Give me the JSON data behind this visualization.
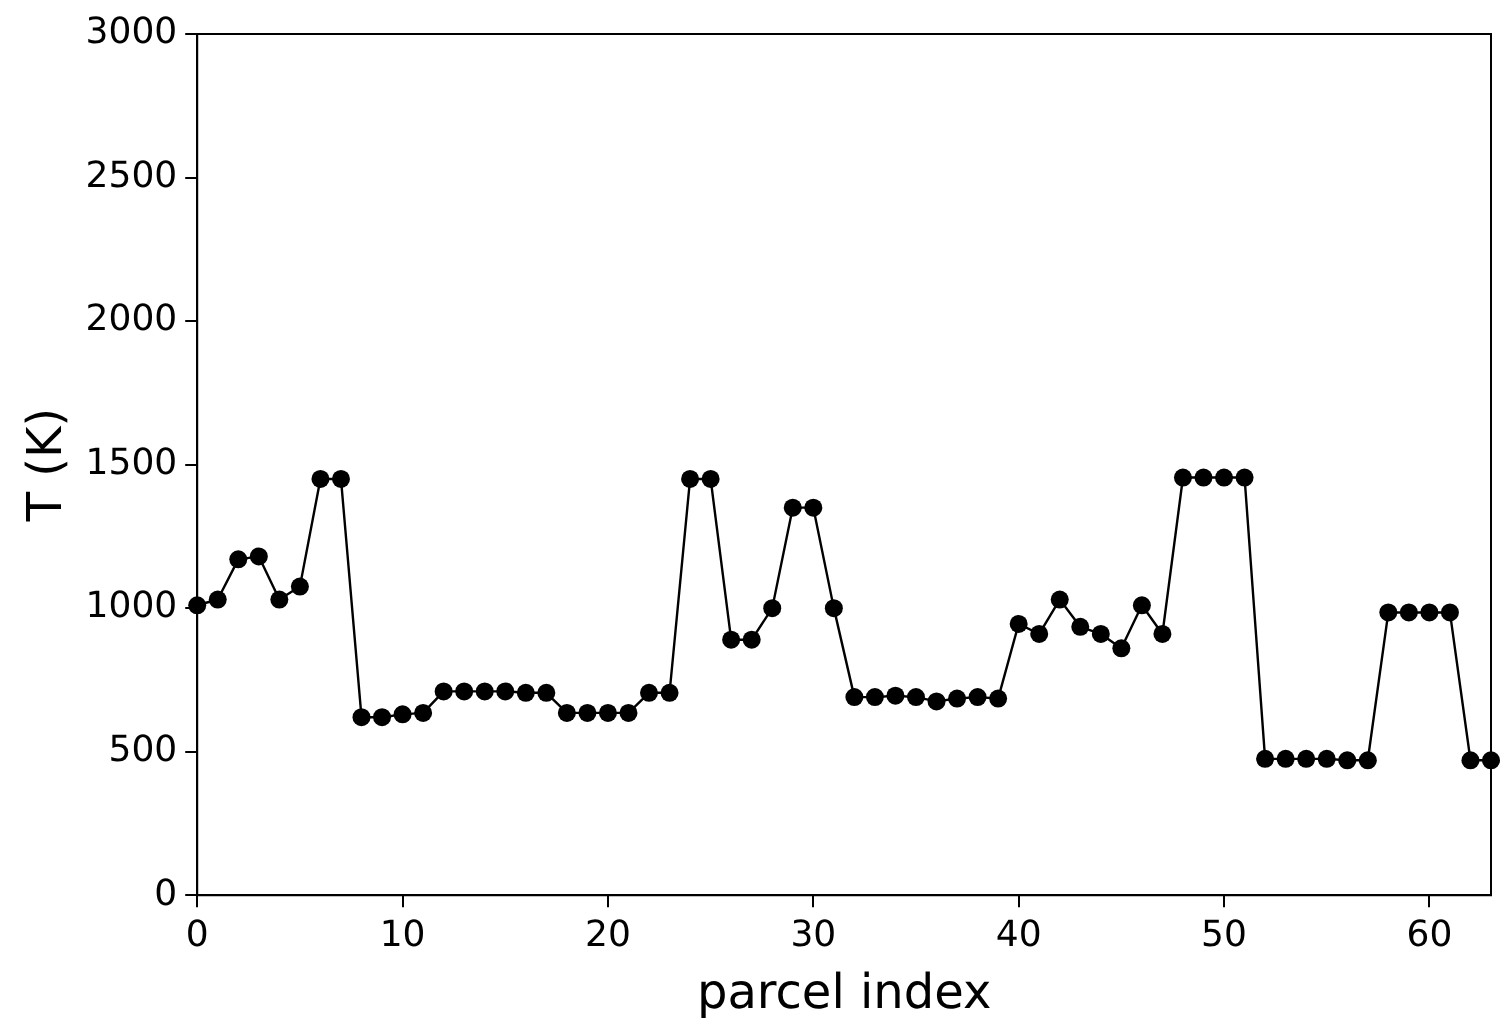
{
  "chart_data": {
    "type": "line",
    "xlabel": "parcel index",
    "ylabel": "T (K)",
    "x": [
      0,
      1,
      2,
      3,
      4,
      5,
      6,
      7,
      8,
      9,
      10,
      11,
      12,
      13,
      14,
      15,
      16,
      17,
      18,
      19,
      20,
      21,
      22,
      23,
      24,
      25,
      26,
      27,
      28,
      29,
      30,
      31,
      32,
      33,
      34,
      35,
      36,
      37,
      38,
      39,
      40,
      41,
      42,
      43,
      44,
      45,
      46,
      47,
      48,
      49,
      50,
      51,
      52,
      53,
      54,
      55,
      56,
      57,
      58,
      59,
      60,
      61,
      62,
      63
    ],
    "series": [
      {
        "color": "#000000",
        "values": [
          1010,
          1030,
          1170,
          1180,
          1030,
          1075,
          1450,
          1450,
          620,
          620,
          630,
          635,
          710,
          710,
          710,
          710,
          705,
          705,
          635,
          635,
          635,
          635,
          705,
          705,
          1450,
          1450,
          890,
          890,
          1000,
          1350,
          1350,
          1000,
          690,
          690,
          695,
          690,
          675,
          685,
          690,
          685,
          945,
          910,
          1030,
          935,
          910,
          860,
          1010,
          910,
          1455,
          1455,
          1455,
          1455,
          475,
          475,
          475,
          475,
          470,
          470,
          985,
          985,
          985,
          985,
          470,
          470
        ]
      }
    ],
    "xlim": [
      0,
      63
    ],
    "ylim": [
      0,
      3000
    ],
    "xticks": [
      0,
      10,
      20,
      30,
      40,
      50,
      60
    ],
    "yticks": [
      0,
      500,
      1000,
      1500,
      2000,
      2500,
      3000
    ],
    "marker": "circle",
    "line_style": "solid",
    "grid": false,
    "legend": false
  }
}
